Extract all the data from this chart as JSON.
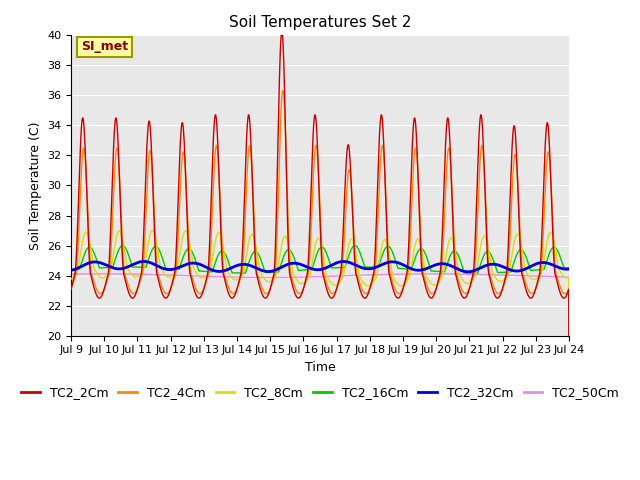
{
  "title": "Soil Temperatures Set 2",
  "xlabel": "Time",
  "ylabel": "Soil Temperature (C)",
  "xlim": [
    0,
    15
  ],
  "ylim": [
    20,
    40
  ],
  "yticks": [
    20,
    22,
    24,
    26,
    28,
    30,
    32,
    34,
    36,
    38,
    40
  ],
  "xtick_labels": [
    "Jul 9",
    "Jul 10",
    "Jul 11",
    "Jul 12",
    "Jul 13",
    "Jul 14",
    "Jul 15",
    "Jul 16",
    "Jul 17",
    "Jul 18",
    "Jul 19",
    "Jul 20",
    "Jul 21",
    "Jul 22",
    "Jul 23",
    "Jul 24"
  ],
  "series_colors": {
    "TC2_2Cm": "#cc0000",
    "TC2_4Cm": "#ff8800",
    "TC2_8Cm": "#dddd00",
    "TC2_16Cm": "#00cc00",
    "TC2_32Cm": "#0000dd",
    "TC2_50Cm": "#ee88ee"
  },
  "series_linewidths": {
    "TC2_2Cm": 1.0,
    "TC2_4Cm": 1.0,
    "TC2_8Cm": 1.0,
    "TC2_16Cm": 1.0,
    "TC2_32Cm": 2.0,
    "TC2_50Cm": 1.0
  },
  "annotation_text": "SI_met",
  "background_color": "#e8e8e8",
  "fig_facecolor": "#ffffff",
  "title_fontsize": 11,
  "axis_label_fontsize": 9,
  "tick_fontsize": 8,
  "legend_fontsize": 9
}
